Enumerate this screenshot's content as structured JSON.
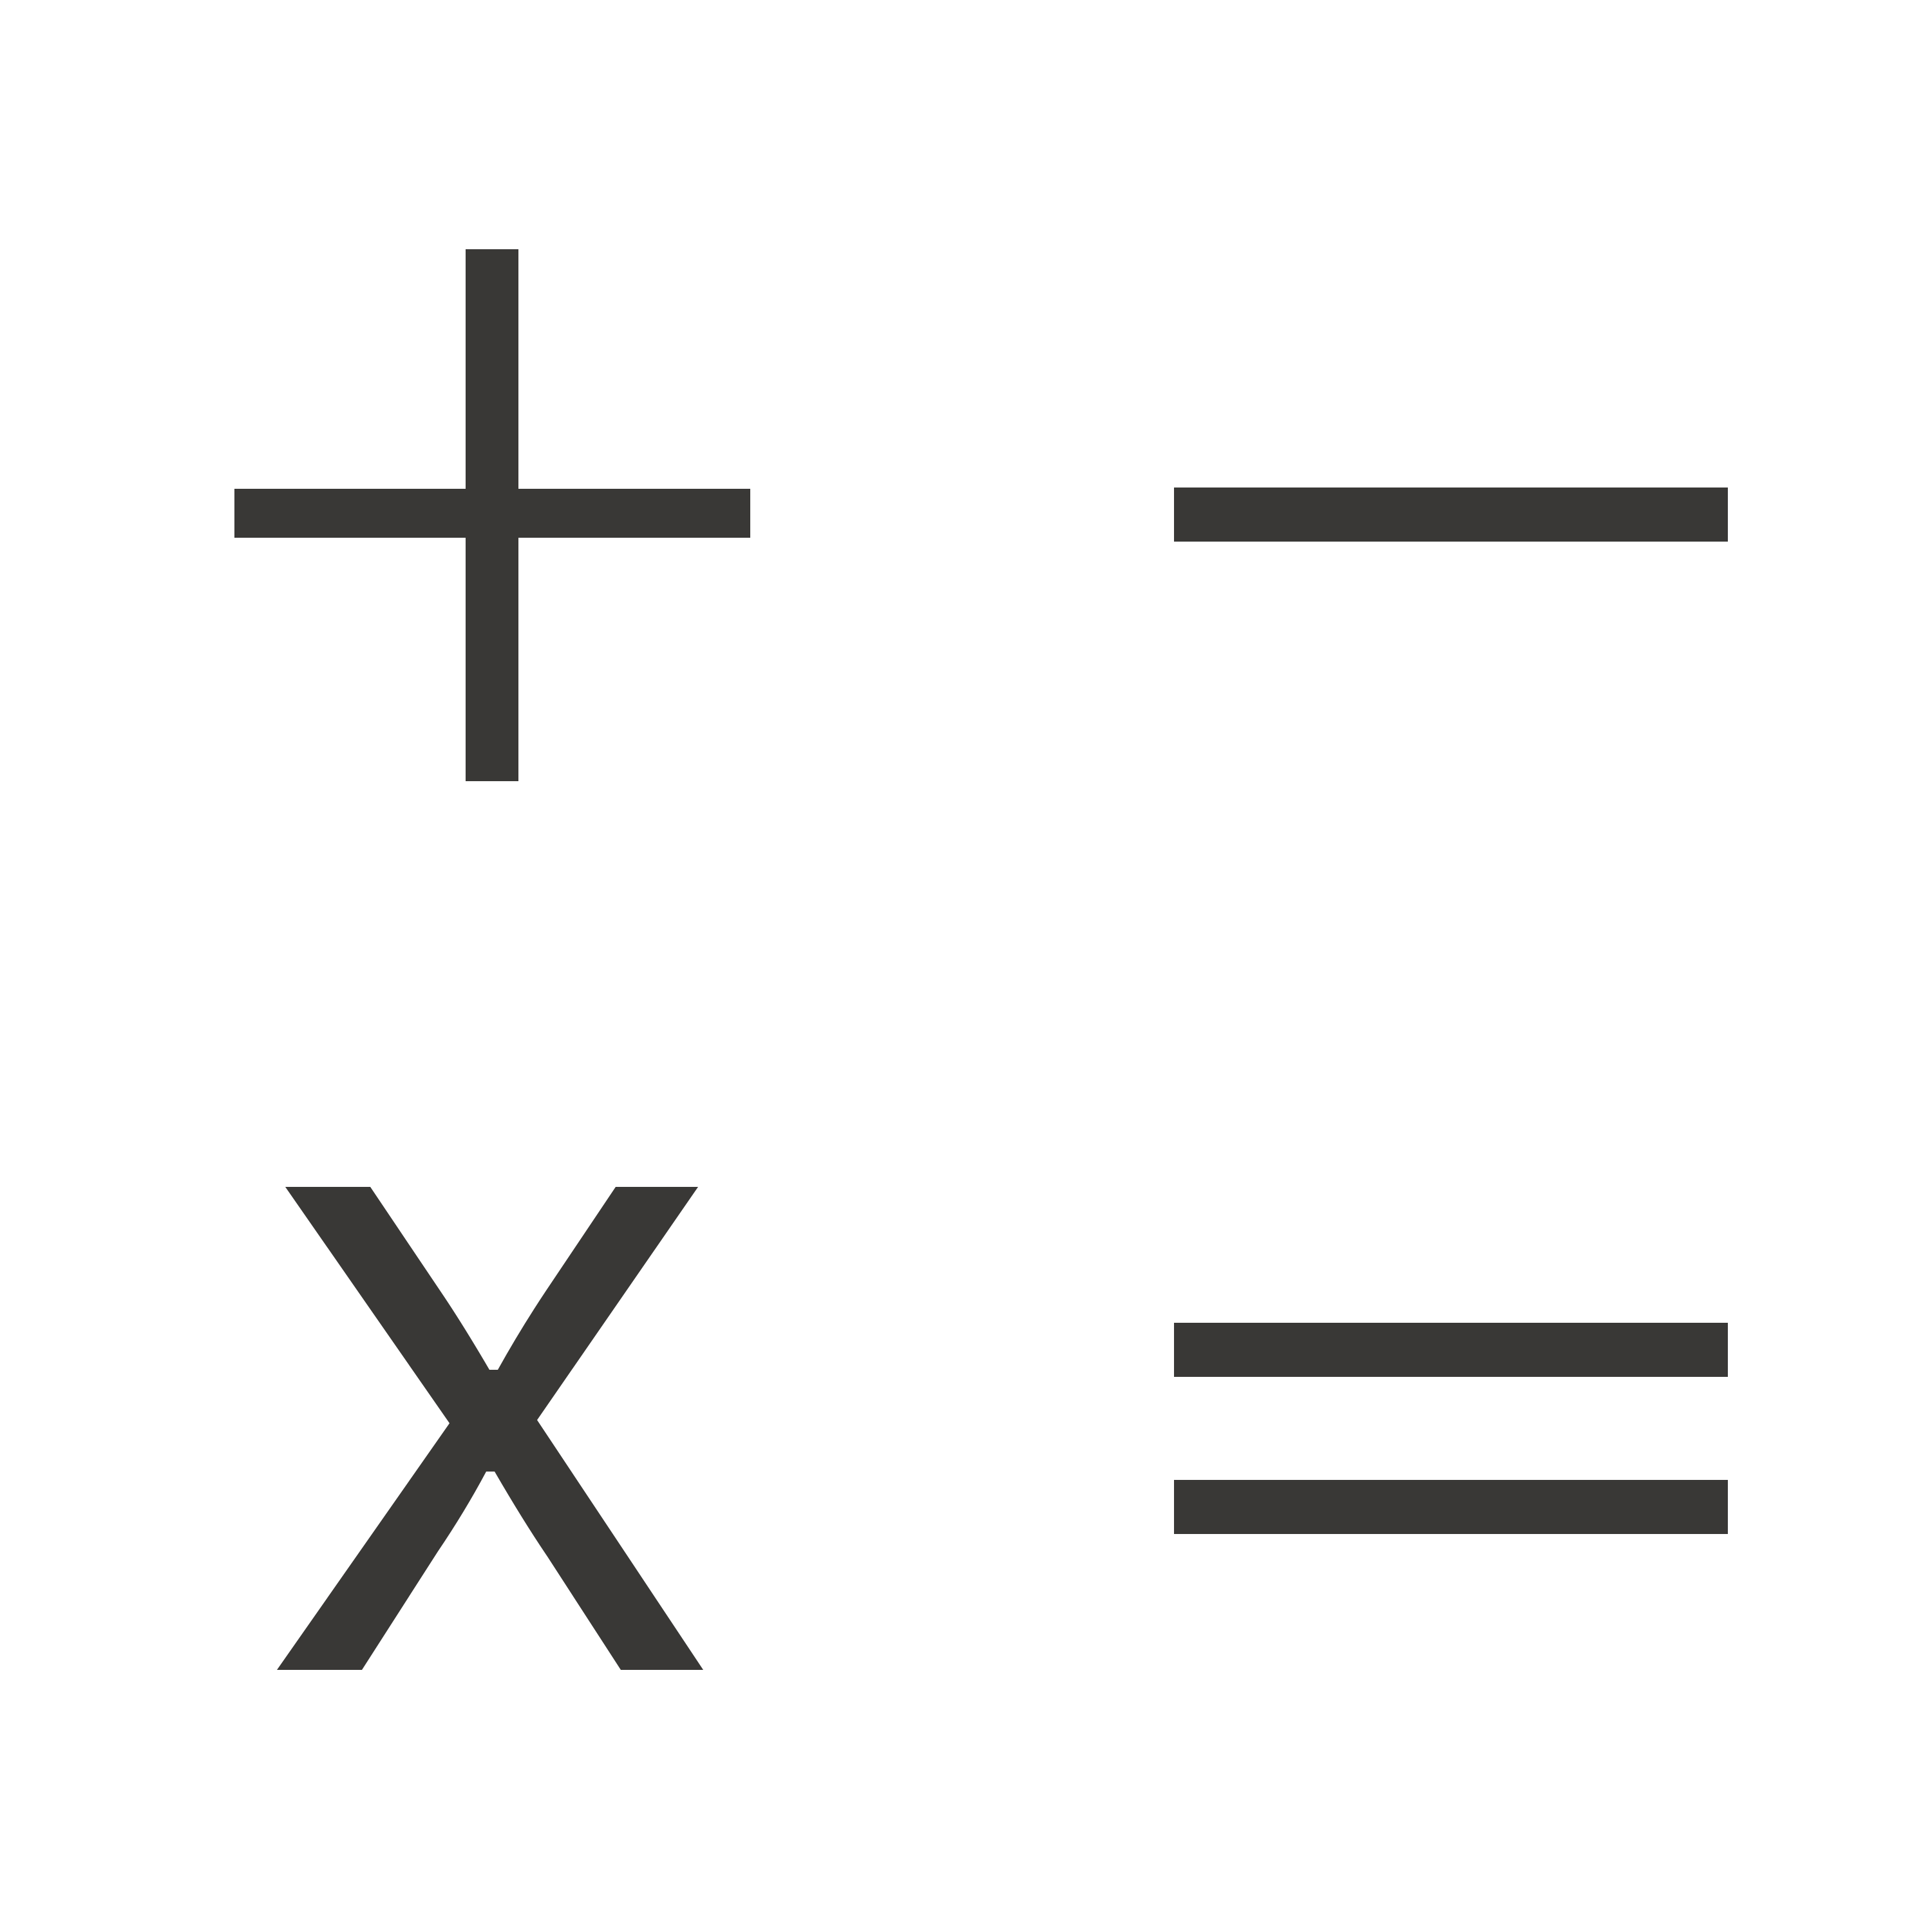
{
  "icon_name": "calculator-operations-icon",
  "color": "#393836",
  "background": "#ffffff",
  "symbols": [
    {
      "name": "plus-icon",
      "glyph": "+"
    },
    {
      "name": "minus-icon",
      "glyph": "−"
    },
    {
      "name": "multiply-icon",
      "glyph": "X"
    },
    {
      "name": "equals-icon",
      "glyph": "="
    }
  ]
}
